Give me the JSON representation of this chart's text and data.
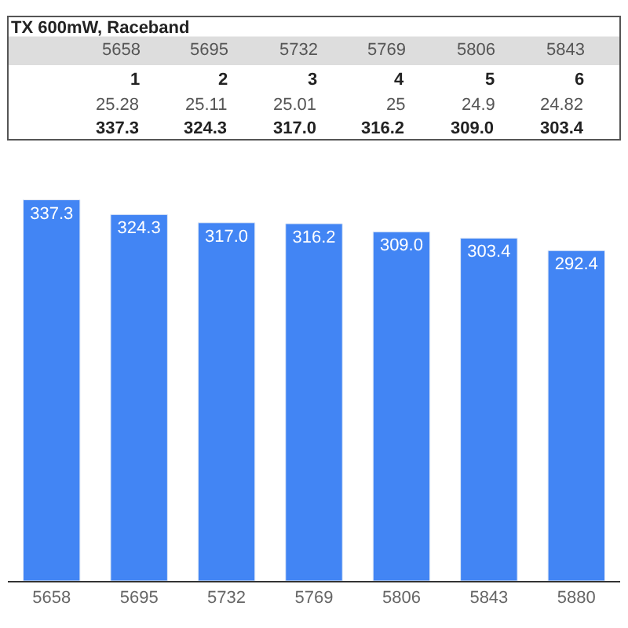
{
  "chart_data": {
    "type": "bar",
    "title": "TX 600mW, Raceband",
    "categories": [
      "5658",
      "5695",
      "5732",
      "5769",
      "5806",
      "5843",
      "5880"
    ],
    "values": [
      337.3,
      324.3,
      317.0,
      316.2,
      309.0,
      303.4,
      292.4
    ],
    "value_labels": [
      "337.3",
      "324.3",
      "317.0",
      "316.2",
      "309.0",
      "303.4",
      "292.4"
    ],
    "color": "#4285f4",
    "tick_labels": "x",
    "annotations": [
      "5658",
      "5695",
      "5732",
      "5769",
      "5806",
      "5843",
      "1",
      "2",
      "3",
      "4",
      "5",
      "6",
      "25.28",
      "25.11",
      "25.01",
      "25",
      "24.9",
      "24.82",
      "337.3",
      "324.3",
      "317.0",
      "316.2",
      "309.0",
      "303.4"
    ]
  }
}
